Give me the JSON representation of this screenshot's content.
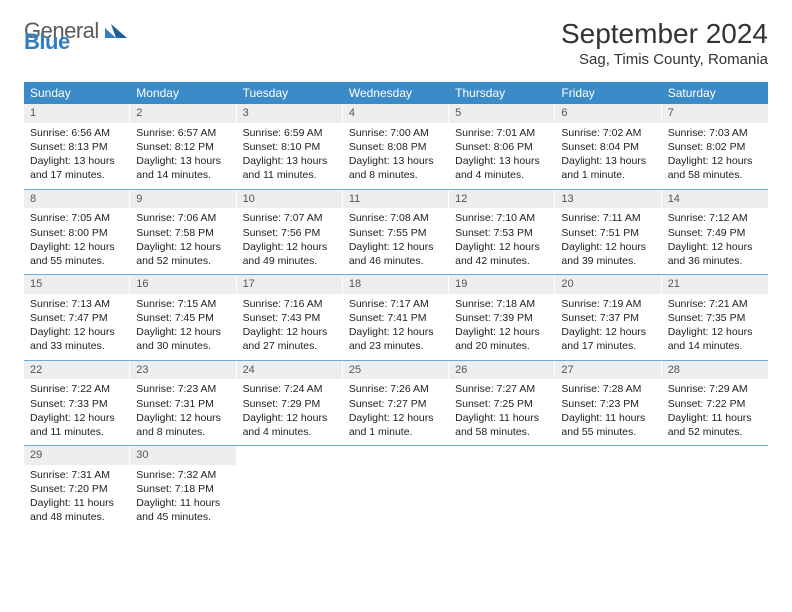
{
  "logo": {
    "text1": "General",
    "text2": "Blue"
  },
  "title": "September 2024",
  "location": "Sag, Timis County, Romania",
  "colors": {
    "header_bg": "#3b8bc8",
    "daynum_bg": "#eceeef",
    "week_border": "#6fa8d6",
    "logo_gray": "#5a5a5a",
    "logo_blue": "#2f7fc1"
  },
  "dayNames": [
    "Sunday",
    "Monday",
    "Tuesday",
    "Wednesday",
    "Thursday",
    "Friday",
    "Saturday"
  ],
  "weeks": [
    [
      {
        "n": "1",
        "sr": "6:56 AM",
        "ss": "8:13 PM",
        "dl": "13 hours and 17 minutes."
      },
      {
        "n": "2",
        "sr": "6:57 AM",
        "ss": "8:12 PM",
        "dl": "13 hours and 14 minutes."
      },
      {
        "n": "3",
        "sr": "6:59 AM",
        "ss": "8:10 PM",
        "dl": "13 hours and 11 minutes."
      },
      {
        "n": "4",
        "sr": "7:00 AM",
        "ss": "8:08 PM",
        "dl": "13 hours and 8 minutes."
      },
      {
        "n": "5",
        "sr": "7:01 AM",
        "ss": "8:06 PM",
        "dl": "13 hours and 4 minutes."
      },
      {
        "n": "6",
        "sr": "7:02 AM",
        "ss": "8:04 PM",
        "dl": "13 hours and 1 minute."
      },
      {
        "n": "7",
        "sr": "7:03 AM",
        "ss": "8:02 PM",
        "dl": "12 hours and 58 minutes."
      }
    ],
    [
      {
        "n": "8",
        "sr": "7:05 AM",
        "ss": "8:00 PM",
        "dl": "12 hours and 55 minutes."
      },
      {
        "n": "9",
        "sr": "7:06 AM",
        "ss": "7:58 PM",
        "dl": "12 hours and 52 minutes."
      },
      {
        "n": "10",
        "sr": "7:07 AM",
        "ss": "7:56 PM",
        "dl": "12 hours and 49 minutes."
      },
      {
        "n": "11",
        "sr": "7:08 AM",
        "ss": "7:55 PM",
        "dl": "12 hours and 46 minutes."
      },
      {
        "n": "12",
        "sr": "7:10 AM",
        "ss": "7:53 PM",
        "dl": "12 hours and 42 minutes."
      },
      {
        "n": "13",
        "sr": "7:11 AM",
        "ss": "7:51 PM",
        "dl": "12 hours and 39 minutes."
      },
      {
        "n": "14",
        "sr": "7:12 AM",
        "ss": "7:49 PM",
        "dl": "12 hours and 36 minutes."
      }
    ],
    [
      {
        "n": "15",
        "sr": "7:13 AM",
        "ss": "7:47 PM",
        "dl": "12 hours and 33 minutes."
      },
      {
        "n": "16",
        "sr": "7:15 AM",
        "ss": "7:45 PM",
        "dl": "12 hours and 30 minutes."
      },
      {
        "n": "17",
        "sr": "7:16 AM",
        "ss": "7:43 PM",
        "dl": "12 hours and 27 minutes."
      },
      {
        "n": "18",
        "sr": "7:17 AM",
        "ss": "7:41 PM",
        "dl": "12 hours and 23 minutes."
      },
      {
        "n": "19",
        "sr": "7:18 AM",
        "ss": "7:39 PM",
        "dl": "12 hours and 20 minutes."
      },
      {
        "n": "20",
        "sr": "7:19 AM",
        "ss": "7:37 PM",
        "dl": "12 hours and 17 minutes."
      },
      {
        "n": "21",
        "sr": "7:21 AM",
        "ss": "7:35 PM",
        "dl": "12 hours and 14 minutes."
      }
    ],
    [
      {
        "n": "22",
        "sr": "7:22 AM",
        "ss": "7:33 PM",
        "dl": "12 hours and 11 minutes."
      },
      {
        "n": "23",
        "sr": "7:23 AM",
        "ss": "7:31 PM",
        "dl": "12 hours and 8 minutes."
      },
      {
        "n": "24",
        "sr": "7:24 AM",
        "ss": "7:29 PM",
        "dl": "12 hours and 4 minutes."
      },
      {
        "n": "25",
        "sr": "7:26 AM",
        "ss": "7:27 PM",
        "dl": "12 hours and 1 minute."
      },
      {
        "n": "26",
        "sr": "7:27 AM",
        "ss": "7:25 PM",
        "dl": "11 hours and 58 minutes."
      },
      {
        "n": "27",
        "sr": "7:28 AM",
        "ss": "7:23 PM",
        "dl": "11 hours and 55 minutes."
      },
      {
        "n": "28",
        "sr": "7:29 AM",
        "ss": "7:22 PM",
        "dl": "11 hours and 52 minutes."
      }
    ],
    [
      {
        "n": "29",
        "sr": "7:31 AM",
        "ss": "7:20 PM",
        "dl": "11 hours and 48 minutes."
      },
      {
        "n": "30",
        "sr": "7:32 AM",
        "ss": "7:18 PM",
        "dl": "11 hours and 45 minutes."
      },
      null,
      null,
      null,
      null,
      null
    ]
  ],
  "labels": {
    "sunrise": "Sunrise:",
    "sunset": "Sunset:",
    "daylight": "Daylight:"
  }
}
